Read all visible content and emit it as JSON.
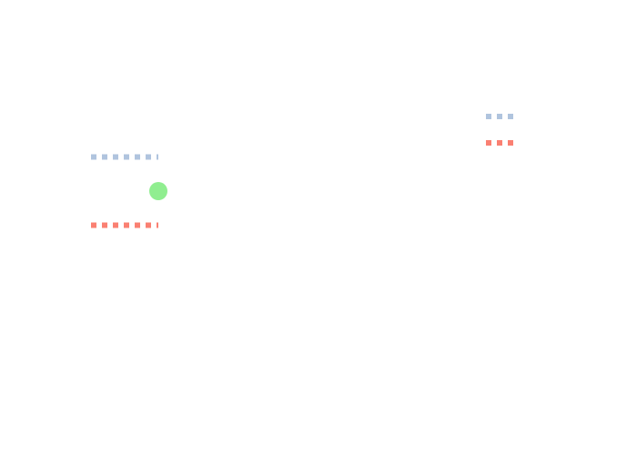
{
  "chart_data": {
    "type": "line",
    "grid": false,
    "xlim": [
      0,
      1
    ],
    "ylim": [
      0,
      1
    ],
    "series": [
      {
        "kind": "line",
        "style": "dotted",
        "color": "#b0c4de",
        "x": [
          0,
          1
        ],
        "y": [
          0.75,
          0.75
        ]
      },
      {
        "kind": "line",
        "style": "dotted",
        "color": "#fa8072",
        "x": [
          0,
          1
        ],
        "y": [
          0.25,
          0.25
        ]
      },
      {
        "kind": "scatter",
        "marker": "circle",
        "color": "#90ee90",
        "x": [
          1
        ],
        "y": [
          0.5
        ]
      }
    ],
    "legend": {
      "position": "top-right",
      "entries": [
        {
          "color": "#b0c4de",
          "style": "dotted"
        },
        {
          "color": "#fa8072",
          "style": "dotted"
        }
      ]
    }
  }
}
